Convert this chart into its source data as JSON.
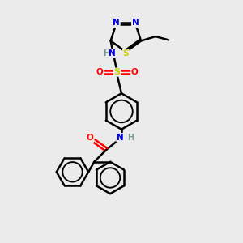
{
  "bg_color": "#ebebeb",
  "atom_colors": {
    "C": "#000000",
    "N": "#0000ee",
    "O": "#ff0000",
    "S": "#cccc00",
    "H": "#7a9a9a"
  },
  "bond_color": "#000000",
  "bond_width": 1.8,
  "font_size": 7.5
}
